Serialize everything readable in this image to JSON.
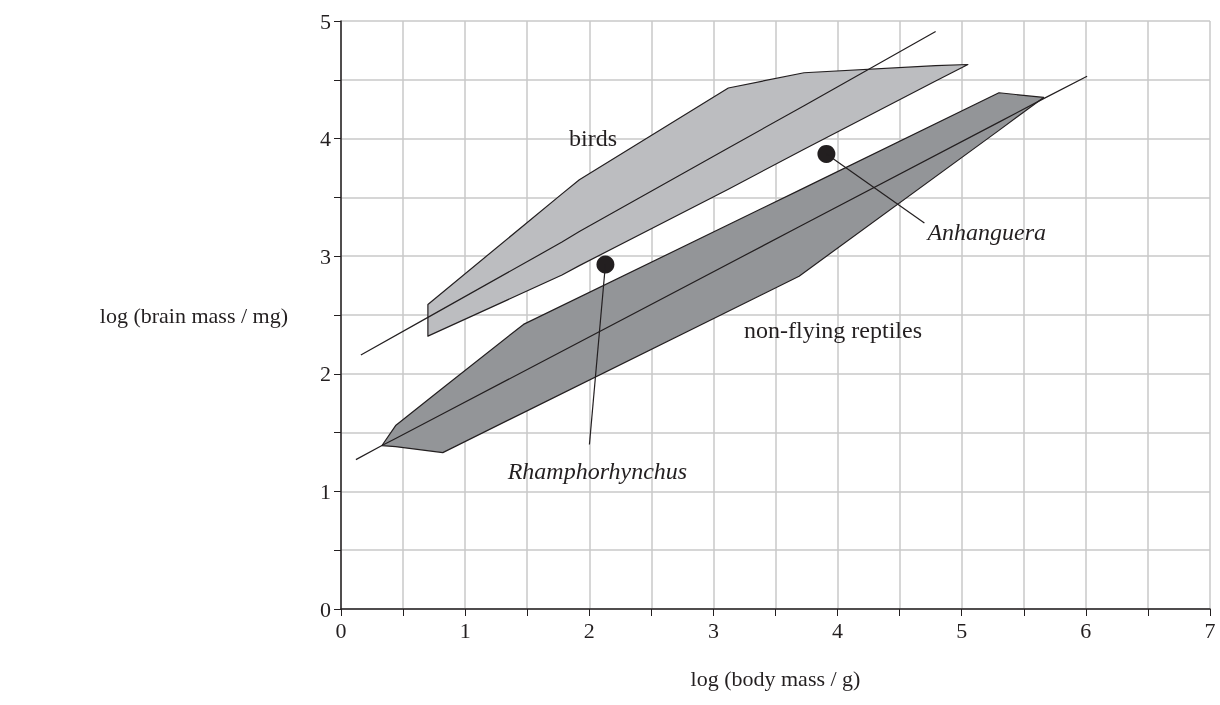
{
  "chart_data": {
    "type": "line",
    "xlabel": "log (body mass / g)",
    "ylabel": "log (brain mass / mg)",
    "xlim": [
      0,
      7
    ],
    "xticks": [
      0,
      {
        "value": 0.5,
        "label": null
      },
      1,
      {
        "value": 1.5,
        "label": null
      },
      2,
      {
        "value": 2.5,
        "label": null
      },
      3,
      {
        "value": 3.5,
        "label": null
      },
      4,
      {
        "value": 4.5,
        "label": null
      },
      5,
      {
        "value": 5.5,
        "label": null
      },
      6,
      {
        "value": 6.5,
        "label": null
      },
      7
    ],
    "ylim": [
      0,
      5
    ],
    "yticks": [
      0,
      {
        "value": 0.5,
        "label": null
      },
      1,
      {
        "value": 1.5,
        "label": null
      },
      2,
      {
        "value": 2.5,
        "label": null
      },
      3,
      {
        "value": 3.5,
        "label": null
      },
      4,
      {
        "value": 4.5,
        "label": null
      },
      5
    ],
    "grid": true,
    "marker": "none",
    "line_style": "solid",
    "series": [
      {
        "color": "#231f20",
        "x": [
          0.16,
          0.7,
          1.78,
          1.92,
          3.12,
          3.73,
          4.79,
          5.05
        ],
        "values": [
          2.16,
          2.48,
          3.12,
          3.21,
          3.92,
          4.28,
          4.91,
          null
        ],
        "lower": [
          null,
          2.32,
          2.84,
          2.92,
          3.57,
          3.91,
          4.49,
          4.63
        ],
        "upper": [
          null,
          2.59,
          3.53,
          3.65,
          4.43,
          4.56,
          4.62,
          4.63
        ]
      },
      {
        "color": "#231f20",
        "x": [
          0.12,
          0.33,
          0.44,
          0.82,
          1.47,
          3.69,
          5.3,
          5.66,
          6.01
        ],
        "values": [
          1.27,
          1.39,
          1.45,
          1.66,
          2.02,
          3.25,
          4.14,
          4.34,
          4.53
        ],
        "lower": [
          null,
          1.39,
          1.38,
          1.33,
          1.67,
          2.83,
          4.07,
          4.35,
          null
        ],
        "upper": [
          null,
          1.39,
          1.56,
          1.88,
          2.42,
          3.56,
          4.39,
          4.35,
          null
        ]
      },
      {
        "type": "scatter",
        "color": "#231f20",
        "marker": "circle",
        "x": [
          2.13,
          3.91
        ],
        "values": [
          2.93,
          3.87
        ]
      }
    ],
    "annotations": [
      "birds",
      "non-flying reptiles",
      {
        "text": "Rhamphorhynchus",
        "x": 2.13,
        "y": 2.93
      },
      {
        "text": "Anhanguera",
        "x": 3.91,
        "y": 3.87
      }
    ]
  }
}
